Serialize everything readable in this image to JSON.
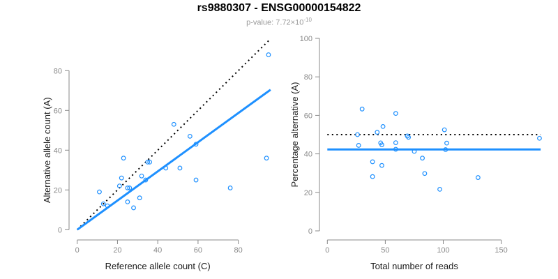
{
  "header": {
    "title": "rs9880307 - ENSG00000154822",
    "subtitle_prefix": "p-value: 7.72×10",
    "subtitle_exponent": "-10"
  },
  "colors": {
    "accent_blue": "#1e90ff",
    "dotted_line": "#000000",
    "axis_line": "#888888",
    "tick_label": "#8a8a8a",
    "axis_title": "#1a1a1a",
    "title": "#000000",
    "subtitle": "#9a9a9a"
  },
  "chart_data": [
    {
      "type": "scatter",
      "name": "allele-counts-scatter",
      "xlabel": "Reference allele count (C)",
      "ylabel": "Alternative allele count (A)",
      "xlim": [
        0,
        96
      ],
      "ylim": [
        0,
        96
      ],
      "xticks": [
        0,
        20,
        40,
        60,
        80
      ],
      "yticks": [
        0,
        20,
        40,
        60,
        80
      ],
      "grid": false,
      "points": [
        [
          11,
          19
        ],
        [
          13,
          13
        ],
        [
          15,
          12
        ],
        [
          21,
          22
        ],
        [
          22,
          26
        ],
        [
          23,
          36
        ],
        [
          25,
          14
        ],
        [
          25,
          21
        ],
        [
          26,
          21
        ],
        [
          28,
          11
        ],
        [
          31,
          16
        ],
        [
          32,
          27
        ],
        [
          34,
          25
        ],
        [
          35,
          34
        ],
        [
          36,
          34
        ],
        [
          44,
          31
        ],
        [
          48,
          53
        ],
        [
          51,
          31
        ],
        [
          56,
          47
        ],
        [
          59,
          43
        ],
        [
          59,
          25
        ],
        [
          76,
          21
        ],
        [
          94,
          36
        ],
        [
          95,
          88
        ]
      ],
      "lines": [
        {
          "name": "identity-line",
          "style": "dotted",
          "color": "#000000",
          "from": [
            0,
            0
          ],
          "to": [
            96,
            96
          ]
        },
        {
          "name": "regression-line",
          "style": "solid",
          "color": "#1e90ff",
          "from": [
            0,
            0
          ],
          "to": [
            96,
            70.4
          ]
        }
      ]
    },
    {
      "type": "scatter",
      "name": "percentage-alternative-scatter",
      "xlabel": "Total number of reads",
      "ylabel": "Percentage alternative (A)",
      "xlim": [
        0,
        184
      ],
      "ylim": [
        0,
        100
      ],
      "xticks": [
        0,
        50,
        100,
        150
      ],
      "yticks": [
        0,
        20,
        40,
        60,
        80,
        100
      ],
      "grid": false,
      "points": [
        [
          30,
          63.3
        ],
        [
          26,
          50
        ],
        [
          27,
          44.4
        ],
        [
          43,
          51.2
        ],
        [
          48,
          54.2
        ],
        [
          59,
          61
        ],
        [
          39,
          35.9
        ],
        [
          46,
          45.7
        ],
        [
          47,
          44.7
        ],
        [
          39,
          28.2
        ],
        [
          47,
          34
        ],
        [
          59,
          45.8
        ],
        [
          59,
          42.4
        ],
        [
          69,
          49.3
        ],
        [
          70,
          48.6
        ],
        [
          75,
          41.3
        ],
        [
          101,
          52.5
        ],
        [
          82,
          37.8
        ],
        [
          103,
          45.6
        ],
        [
          102,
          42.2
        ],
        [
          84,
          29.8
        ],
        [
          97,
          21.6
        ],
        [
          130,
          27.7
        ],
        [
          183,
          48.1
        ]
      ],
      "lines": [
        {
          "name": "null-50pct-line",
          "style": "dotted",
          "color": "#000000",
          "y": 50
        },
        {
          "name": "mean-pct-line",
          "style": "solid",
          "color": "#1e90ff",
          "y": 42.3
        }
      ]
    }
  ]
}
